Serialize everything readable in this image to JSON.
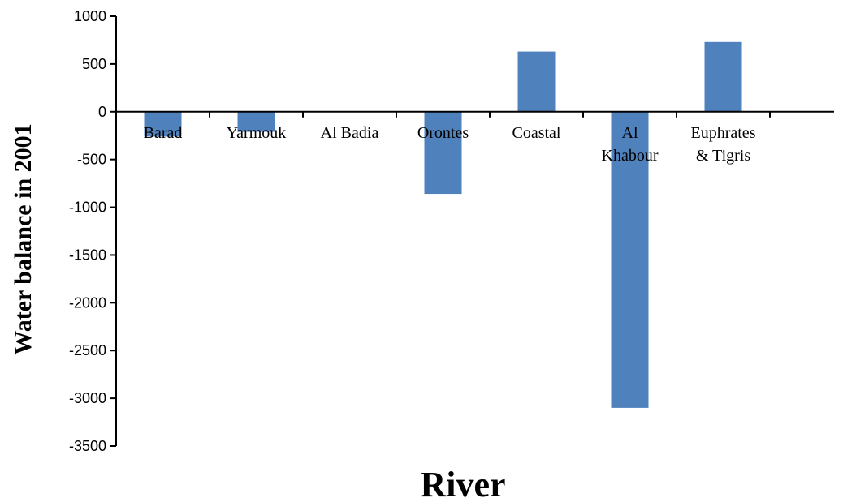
{
  "chart_data": {
    "type": "bar",
    "title": "",
    "xlabel": "River",
    "ylabel": "Water balance in 2001",
    "categories": [
      [
        "Barad"
      ],
      [
        "Yarmouk"
      ],
      [
        "Al Badia"
      ],
      [
        "Orontes"
      ],
      [
        "Coastal"
      ],
      [
        "Al",
        "Khabour"
      ],
      [
        "Euphrates",
        "& Tigris"
      ]
    ],
    "values": [
      -260,
      -210,
      0,
      -860,
      630,
      -3100,
      730
    ],
    "ylim": [
      -3500,
      1000
    ],
    "yticks": [
      1000,
      500,
      0,
      -500,
      -1000,
      -1500,
      -2000,
      -2500,
      -3000,
      -3500
    ],
    "grid": false,
    "legend": "none",
    "bar_color": "#4F81BD"
  }
}
